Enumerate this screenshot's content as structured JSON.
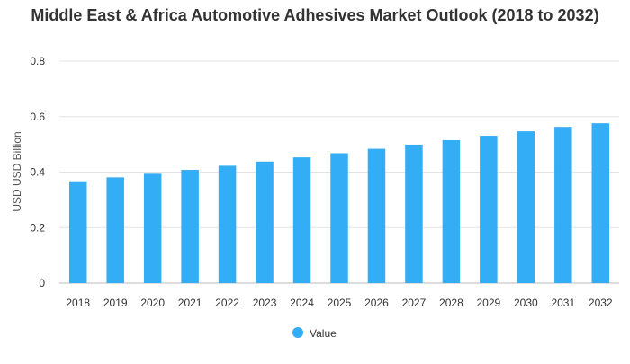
{
  "chart_data": {
    "type": "bar",
    "title": "Middle East & Africa Automotive Adhesives Market Outlook (2018 to 2032)",
    "ylabel": "USD USD Billion",
    "xlabel": "",
    "ylim": [
      0,
      0.8
    ],
    "yticks": [
      0,
      0.2,
      0.4,
      0.6,
      0.8
    ],
    "grid": true,
    "legend_position": "bottom",
    "categories": [
      "2018",
      "2019",
      "2020",
      "2021",
      "2022",
      "2023",
      "2024",
      "2025",
      "2026",
      "2027",
      "2028",
      "2029",
      "2030",
      "2031",
      "2032"
    ],
    "series": [
      {
        "name": "Value",
        "color": "#33adf5",
        "values": [
          0.367,
          0.381,
          0.394,
          0.408,
          0.423,
          0.438,
          0.453,
          0.468,
          0.484,
          0.499,
          0.515,
          0.531,
          0.547,
          0.563,
          0.576
        ]
      }
    ]
  }
}
